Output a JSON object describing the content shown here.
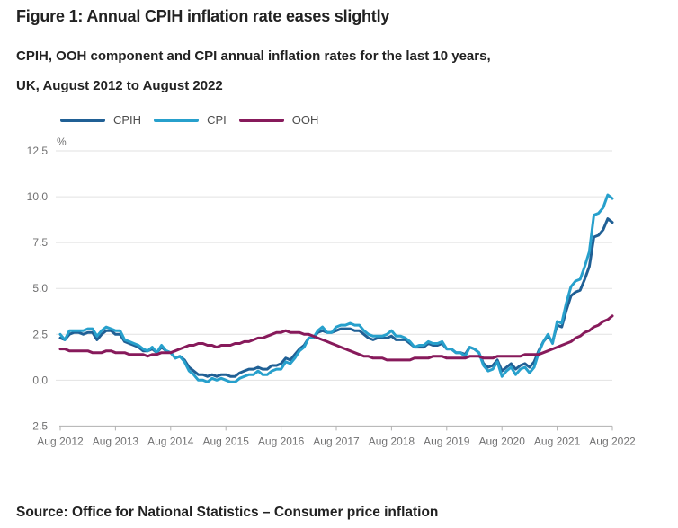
{
  "header": {
    "title": "Figure 1: Annual CPIH inflation rate eases slightly",
    "subtitle_line1": "CPIH, OOH component and CPI annual inflation rates for the last 10 years,",
    "subtitle_line2": "UK, August 2012 to August 2022"
  },
  "footer": {
    "source": "Source: Office for National Statistics – Consumer price inflation"
  },
  "chart_data": {
    "type": "line",
    "title": "Figure 1: Annual CPIH inflation rate eases slightly",
    "subtitle": "CPIH, OOH component and CPI annual inflation rates for the last 10 years, UK, August 2012 to August 2022",
    "unit_label": "%",
    "grid": "horizontal",
    "legend_position": "top",
    "x_start": "Aug 2012",
    "x_end": "Aug 2022",
    "x_frequency": "monthly",
    "months_per_tick": 12,
    "x_tick_labels": [
      "Aug 2012",
      "Aug 2013",
      "Aug 2014",
      "Aug 2015",
      "Aug 2016",
      "Aug 2017",
      "Aug 2018",
      "Aug 2019",
      "Aug 2020",
      "Aug 2021",
      "Aug 2022"
    ],
    "ylim": [
      -2.5,
      12.5
    ],
    "y_ticks": [
      12.5,
      10.0,
      7.5,
      5.0,
      2.5,
      0.0,
      -2.5
    ],
    "y_tick_labels": [
      "12.5",
      "10.0",
      "7.5",
      "5.0",
      "2.5",
      "0.0",
      "-2.5"
    ],
    "series": [
      {
        "name": "CPIH",
        "color": "#206095",
        "values": [
          2.3,
          2.2,
          2.5,
          2.6,
          2.6,
          2.5,
          2.6,
          2.6,
          2.2,
          2.5,
          2.7,
          2.7,
          2.5,
          2.5,
          2.1,
          2.0,
          1.9,
          1.8,
          1.6,
          1.6,
          1.7,
          1.5,
          1.8,
          1.6,
          1.5,
          1.2,
          1.3,
          1.1,
          0.7,
          0.5,
          0.3,
          0.3,
          0.2,
          0.3,
          0.2,
          0.3,
          0.3,
          0.2,
          0.2,
          0.4,
          0.5,
          0.6,
          0.6,
          0.7,
          0.6,
          0.6,
          0.8,
          0.8,
          0.9,
          1.2,
          1.1,
          1.4,
          1.7,
          1.9,
          2.3,
          2.3,
          2.6,
          2.7,
          2.6,
          2.6,
          2.7,
          2.8,
          2.8,
          2.8,
          2.7,
          2.7,
          2.5,
          2.3,
          2.2,
          2.3,
          2.3,
          2.3,
          2.4,
          2.2,
          2.2,
          2.2,
          2.0,
          1.8,
          1.8,
          1.8,
          2.0,
          1.9,
          1.9,
          2.0,
          1.7,
          1.7,
          1.5,
          1.5,
          1.4,
          1.8,
          1.7,
          1.5,
          0.9,
          0.7,
          0.8,
          1.1,
          0.5,
          0.7,
          0.9,
          0.6,
          0.8,
          0.9,
          0.7,
          1.0,
          1.6,
          2.1,
          2.4,
          2.1,
          3.0,
          2.9,
          3.8,
          4.6,
          4.8,
          4.9,
          5.5,
          6.2,
          7.8,
          7.9,
          8.2,
          8.8,
          8.6
        ]
      },
      {
        "name": "CPI",
        "color": "#27A0CC",
        "values": [
          2.5,
          2.2,
          2.7,
          2.7,
          2.7,
          2.7,
          2.8,
          2.8,
          2.4,
          2.7,
          2.9,
          2.8,
          2.7,
          2.7,
          2.2,
          2.1,
          2.0,
          1.9,
          1.7,
          1.6,
          1.8,
          1.5,
          1.9,
          1.6,
          1.5,
          1.2,
          1.3,
          1.0,
          0.5,
          0.3,
          0.0,
          0.0,
          -0.1,
          0.1,
          0.0,
          0.1,
          0.0,
          -0.1,
          -0.1,
          0.1,
          0.2,
          0.3,
          0.3,
          0.5,
          0.3,
          0.3,
          0.5,
          0.6,
          0.6,
          1.0,
          0.9,
          1.2,
          1.6,
          1.8,
          2.3,
          2.3,
          2.7,
          2.9,
          2.6,
          2.6,
          2.9,
          3.0,
          3.0,
          3.1,
          3.0,
          3.0,
          2.7,
          2.5,
          2.4,
          2.4,
          2.4,
          2.5,
          2.7,
          2.4,
          2.4,
          2.3,
          2.1,
          1.8,
          1.9,
          1.9,
          2.1,
          2.0,
          2.0,
          2.1,
          1.7,
          1.7,
          1.5,
          1.5,
          1.3,
          1.8,
          1.7,
          1.5,
          0.8,
          0.5,
          0.6,
          1.0,
          0.2,
          0.5,
          0.7,
          0.3,
          0.6,
          0.7,
          0.4,
          0.7,
          1.5,
          2.1,
          2.5,
          2.0,
          3.2,
          3.1,
          4.2,
          5.1,
          5.4,
          5.5,
          6.2,
          7.0,
          9.0,
          9.1,
          9.4,
          10.1,
          9.9
        ]
      },
      {
        "name": "OOH",
        "color": "#871A5B",
        "values": [
          1.7,
          1.7,
          1.6,
          1.6,
          1.6,
          1.6,
          1.6,
          1.5,
          1.5,
          1.5,
          1.6,
          1.6,
          1.5,
          1.5,
          1.5,
          1.4,
          1.4,
          1.4,
          1.4,
          1.3,
          1.4,
          1.4,
          1.5,
          1.5,
          1.5,
          1.6,
          1.7,
          1.8,
          1.9,
          1.9,
          2.0,
          2.0,
          1.9,
          1.9,
          1.8,
          1.9,
          1.9,
          1.9,
          2.0,
          2.0,
          2.1,
          2.1,
          2.2,
          2.3,
          2.3,
          2.4,
          2.5,
          2.6,
          2.6,
          2.7,
          2.6,
          2.6,
          2.6,
          2.5,
          2.5,
          2.4,
          2.3,
          2.2,
          2.1,
          2.0,
          1.9,
          1.8,
          1.7,
          1.6,
          1.5,
          1.4,
          1.3,
          1.3,
          1.2,
          1.2,
          1.2,
          1.1,
          1.1,
          1.1,
          1.1,
          1.1,
          1.1,
          1.2,
          1.2,
          1.2,
          1.2,
          1.3,
          1.3,
          1.3,
          1.2,
          1.2,
          1.2,
          1.2,
          1.2,
          1.3,
          1.3,
          1.3,
          1.2,
          1.2,
          1.2,
          1.3,
          1.3,
          1.3,
          1.3,
          1.3,
          1.3,
          1.4,
          1.4,
          1.4,
          1.4,
          1.5,
          1.6,
          1.7,
          1.8,
          1.9,
          2.0,
          2.1,
          2.3,
          2.4,
          2.6,
          2.7,
          2.9,
          3.0,
          3.2,
          3.3,
          3.5
        ]
      }
    ]
  }
}
